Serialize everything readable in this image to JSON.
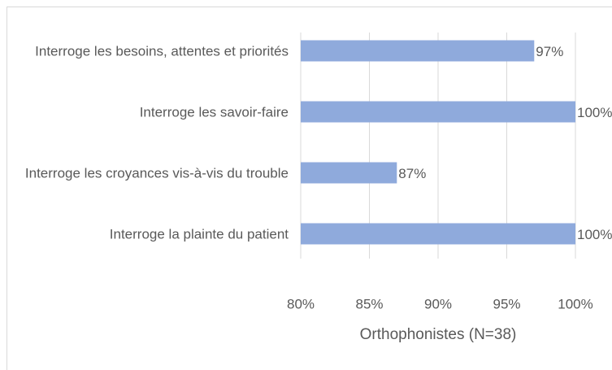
{
  "chart_data": {
    "type": "hbar",
    "categories": [
      "Interroge les besoins, attentes et priorités",
      "Interroge les savoir-faire",
      "Interroge les croyances vis-à-vis du trouble",
      "Interroge la plainte du patient"
    ],
    "values": [
      97,
      100,
      87,
      100
    ],
    "value_labels": [
      "97%",
      "100%",
      "87%",
      "100%"
    ],
    "color": "#8faadc",
    "xlim": [
      80,
      100
    ],
    "xticks": [
      {
        "value": 80,
        "label": "80%"
      },
      {
        "value": 85,
        "label": "85%"
      },
      {
        "value": 90,
        "label": "90%"
      },
      {
        "value": 95,
        "label": "95%"
      },
      {
        "value": 100,
        "label": "100%"
      }
    ],
    "xlabel": "Orthophonistes (N=38)",
    "grid": true
  }
}
